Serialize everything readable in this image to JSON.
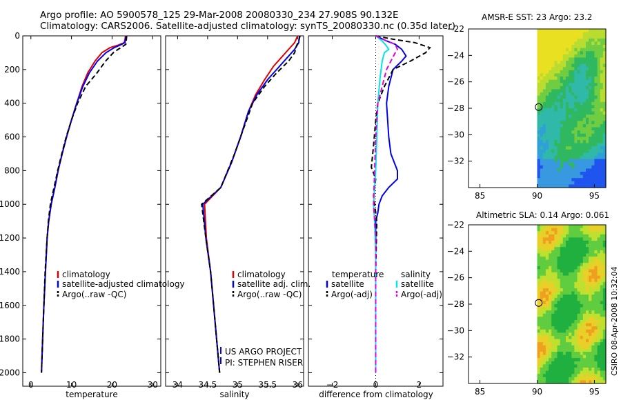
{
  "header": {
    "line1": "Argo profile: AO 5900578_125 29-Mar-2008 20080330_234 27.908S 90.132E",
    "line2": "Climatology: CARS2006. Satellite-adjusted climatology: synTS_20080330.nc (0.35d later)"
  },
  "side_label": "CSIRO 08-Apr-2008 10:32:04",
  "colors": {
    "red": "#e00000",
    "blue": "#0000ee",
    "black": "#000000",
    "cyan": "#00e6e6",
    "magenta": "#e000e0"
  },
  "chart_data": [
    {
      "type": "line",
      "id": "temperature-panel",
      "xlabel": "temperature",
      "xlim": [
        -2,
        32
      ],
      "xticks": [
        0,
        10,
        20,
        30
      ],
      "ylim": [
        2080,
        0
      ],
      "yticks": [
        0,
        200,
        400,
        600,
        800,
        1000,
        1200,
        1400,
        1600,
        1800,
        2000
      ],
      "legend": {
        "placement": "lower-left",
        "entries": [
          "climatology",
          "satellite-adjusted climatology",
          "Argo(..raw -QC)"
        ]
      },
      "series": [
        {
          "name": "climatology",
          "color": "red",
          "style": "solid",
          "points": [
            [
              23.3,
              0
            ],
            [
              23.2,
              20
            ],
            [
              23.0,
              40
            ],
            [
              21.5,
              55
            ],
            [
              19.5,
              70
            ],
            [
              17.5,
              100
            ],
            [
              15.8,
              150
            ],
            [
              14.0,
              220
            ],
            [
              12.6,
              300
            ],
            [
              11.3,
              400
            ],
            [
              10.0,
              500
            ],
            [
              8.8,
              600
            ],
            [
              7.7,
              700
            ],
            [
              6.7,
              800
            ],
            [
              5.9,
              900
            ],
            [
              5.0,
              1000
            ],
            [
              4.4,
              1100
            ],
            [
              4.0,
              1200
            ],
            [
              3.6,
              1400
            ],
            [
              3.2,
              1600
            ],
            [
              2.9,
              1800
            ],
            [
              2.6,
              2000
            ]
          ]
        },
        {
          "name": "satellite-adjusted climatology",
          "color": "blue",
          "style": "solid",
          "points": [
            [
              23.5,
              0
            ],
            [
              23.3,
              20
            ],
            [
              23.2,
              40
            ],
            [
              22.0,
              55
            ],
            [
              20.5,
              70
            ],
            [
              18.5,
              100
            ],
            [
              16.4,
              150
            ],
            [
              14.4,
              220
            ],
            [
              12.8,
              300
            ],
            [
              11.3,
              400
            ],
            [
              10.0,
              500
            ],
            [
              8.8,
              600
            ],
            [
              7.7,
              700
            ],
            [
              6.7,
              800
            ],
            [
              5.9,
              900
            ],
            [
              5.0,
              1000
            ],
            [
              4.4,
              1100
            ],
            [
              4.0,
              1200
            ],
            [
              3.6,
              1400
            ],
            [
              3.2,
              1600
            ],
            [
              2.9,
              1800
            ],
            [
              2.6,
              2000
            ]
          ]
        },
        {
          "name": "Argo(..raw -QC)",
          "color": "black",
          "style": "dashed",
          "points": [
            [
              23.6,
              0
            ],
            [
              23.5,
              30
            ],
            [
              23.4,
              50
            ],
            [
              22.5,
              65
            ],
            [
              21.5,
              80
            ],
            [
              20.3,
              100
            ],
            [
              18.4,
              150
            ],
            [
              16.3,
              220
            ],
            [
              13.5,
              300
            ],
            [
              11.5,
              400
            ],
            [
              10.0,
              500
            ],
            [
              8.7,
              600
            ],
            [
              7.6,
              700
            ],
            [
              6.6,
              800
            ],
            [
              5.7,
              900
            ],
            [
              4.8,
              1000
            ],
            [
              4.3,
              1100
            ],
            [
              4.0,
              1200
            ],
            [
              3.5,
              1400
            ],
            [
              3.2,
              1600
            ],
            [
              2.9,
              1800
            ],
            [
              2.6,
              2000
            ]
          ]
        }
      ]
    },
    {
      "type": "line",
      "id": "salinity-panel",
      "xlabel": "salinity",
      "xlim": [
        33.8,
        36.1
      ],
      "xticks": [
        34,
        34.5,
        35,
        35.5,
        36
      ],
      "xtick_labels": [
        "34",
        "34.5",
        "35",
        "35.5",
        "36"
      ],
      "ylim": [
        2080,
        0
      ],
      "legend": {
        "placement": "lower-left",
        "entries": [
          "climatology",
          "satellite adj. clim.",
          "Argo(..raw -QC)"
        ]
      },
      "annotation": [
        "US ARGO PROJECT",
        "PI: STEPHEN RISER"
      ],
      "series": [
        {
          "name": "climatology",
          "color": "red",
          "style": "solid",
          "points": [
            [
              36.0,
              0
            ],
            [
              35.95,
              40
            ],
            [
              35.85,
              80
            ],
            [
              35.75,
              120
            ],
            [
              35.6,
              180
            ],
            [
              35.45,
              260
            ],
            [
              35.3,
              350
            ],
            [
              35.18,
              450
            ],
            [
              35.05,
              600
            ],
            [
              34.9,
              750
            ],
            [
              34.72,
              900
            ],
            [
              34.45,
              1000
            ],
            [
              34.48,
              1200
            ],
            [
              34.55,
              1400
            ],
            [
              34.6,
              1600
            ],
            [
              34.65,
              1800
            ],
            [
              34.7,
              2000
            ]
          ]
        },
        {
          "name": "satellite adj. clim.",
          "color": "blue",
          "style": "solid",
          "points": [
            [
              36.03,
              0
            ],
            [
              36.02,
              40
            ],
            [
              35.95,
              80
            ],
            [
              35.85,
              120
            ],
            [
              35.7,
              180
            ],
            [
              35.5,
              260
            ],
            [
              35.32,
              350
            ],
            [
              35.18,
              450
            ],
            [
              35.05,
              600
            ],
            [
              34.9,
              750
            ],
            [
              34.72,
              900
            ],
            [
              34.42,
              1000
            ],
            [
              34.47,
              1200
            ],
            [
              34.55,
              1400
            ],
            [
              34.6,
              1600
            ],
            [
              34.65,
              1800
            ],
            [
              34.7,
              2000
            ]
          ]
        },
        {
          "name": "Argo(..raw -QC)",
          "color": "black",
          "style": "dashed",
          "points": [
            [
              36.04,
              0
            ],
            [
              36.02,
              30
            ],
            [
              35.98,
              60
            ],
            [
              35.95,
              100
            ],
            [
              35.85,
              150
            ],
            [
              35.65,
              220
            ],
            [
              35.45,
              300
            ],
            [
              35.25,
              400
            ],
            [
              35.1,
              550
            ],
            [
              34.95,
              700
            ],
            [
              34.72,
              900
            ],
            [
              34.4,
              1000
            ],
            [
              34.47,
              1200
            ],
            [
              34.55,
              1400
            ],
            [
              34.6,
              1600
            ],
            [
              34.65,
              1800
            ],
            [
              34.7,
              2000
            ]
          ]
        }
      ]
    },
    {
      "type": "line",
      "id": "difference-panel",
      "xlabel": "difference from climatology",
      "xlim": [
        -3.1,
        3.1
      ],
      "xticks": [
        -2,
        0,
        2
      ],
      "ylim": [
        2080,
        0
      ],
      "legend": {
        "placement": "middle",
        "col1_title": "temperature",
        "col1_entries": [
          "satellite",
          "Argo(-adj)"
        ],
        "col2_title": "salinity",
        "col2_entries": [
          "satellite",
          "Argo(-adj)"
        ]
      },
      "series": [
        {
          "name": "temperature satellite",
          "color": "blue",
          "style": "solid",
          "points": [
            [
              0.0,
              0
            ],
            [
              0.5,
              30
            ],
            [
              0.9,
              50
            ],
            [
              1.2,
              80
            ],
            [
              1.4,
              120
            ],
            [
              1.2,
              150
            ],
            [
              0.8,
              200
            ],
            [
              0.6,
              300
            ],
            [
              0.5,
              400
            ],
            [
              0.55,
              500
            ],
            [
              0.6,
              600
            ],
            [
              0.7,
              700
            ],
            [
              1.0,
              800
            ],
            [
              1.0,
              850
            ],
            [
              0.6,
              900
            ],
            [
              0.3,
              950
            ],
            [
              0.15,
              1000
            ],
            [
              0.1,
              1050
            ],
            [
              0.0,
              1100
            ],
            [
              0.0,
              2000
            ]
          ]
        },
        {
          "name": "temperature Argo(-adj)",
          "color": "black",
          "style": "dashed",
          "points": [
            [
              0.0,
              0
            ],
            [
              0.8,
              20
            ],
            [
              1.8,
              40
            ],
            [
              2.5,
              70
            ],
            [
              2.3,
              100
            ],
            [
              1.6,
              150
            ],
            [
              0.8,
              200
            ],
            [
              0.4,
              300
            ],
            [
              0.1,
              400
            ],
            [
              0.0,
              500
            ],
            [
              -0.1,
              650
            ],
            [
              -0.2,
              780
            ],
            [
              0.0,
              850
            ],
            [
              -0.1,
              950
            ],
            [
              0.05,
              1100
            ],
            [
              0.0,
              1400
            ],
            [
              0.0,
              2000
            ]
          ]
        },
        {
          "name": "salinity satellite",
          "color": "cyan",
          "style": "solid",
          "points": [
            [
              0.0,
              0
            ],
            [
              0.3,
              30
            ],
            [
              0.5,
              60
            ],
            [
              0.6,
              80
            ],
            [
              0.4,
              100
            ],
            [
              0.3,
              150
            ],
            [
              0.2,
              250
            ],
            [
              0.1,
              400
            ],
            [
              0.05,
              600
            ],
            [
              0.0,
              800
            ],
            [
              -0.1,
              1000
            ],
            [
              -0.05,
              1100
            ],
            [
              0.0,
              1300
            ],
            [
              0.0,
              2000
            ]
          ]
        },
        {
          "name": "salinity Argo(-adj)",
          "color": "magenta",
          "style": "dashed",
          "points": [
            [
              0.0,
              0
            ],
            [
              0.5,
              30
            ],
            [
              0.9,
              50
            ],
            [
              1.0,
              80
            ],
            [
              0.9,
              100
            ],
            [
              0.7,
              150
            ],
            [
              0.5,
              200
            ],
            [
              0.3,
              300
            ],
            [
              0.1,
              400
            ],
            [
              0.0,
              600
            ],
            [
              -0.05,
              800
            ],
            [
              -0.1,
              1000
            ],
            [
              0.0,
              1200
            ],
            [
              0.0,
              2000
            ]
          ]
        }
      ]
    },
    {
      "type": "heatmap",
      "id": "sst-map",
      "title": "AMSR-E SST: 23 Argo: 23.2",
      "xlim": [
        84,
        96
      ],
      "xticks": [
        85,
        90,
        95
      ],
      "ylim": [
        -34,
        -22
      ],
      "yticks": [
        -22,
        -24,
        -26,
        -28,
        -30,
        -32
      ],
      "data_x_range": [
        90,
        96
      ],
      "marker": [
        90.132,
        -27.908
      ]
    },
    {
      "type": "heatmap",
      "id": "sla-map",
      "title": "Altimetric SLA: 0.14 Argo: 0.061",
      "xlim": [
        84,
        96
      ],
      "xticks": [
        85,
        90,
        95
      ],
      "ylim": [
        -34,
        -22
      ],
      "yticks": [
        -22,
        -24,
        -26,
        -28,
        -30,
        -32
      ],
      "data_x_range": [
        90,
        96
      ],
      "marker": [
        90.132,
        -27.908
      ]
    }
  ]
}
